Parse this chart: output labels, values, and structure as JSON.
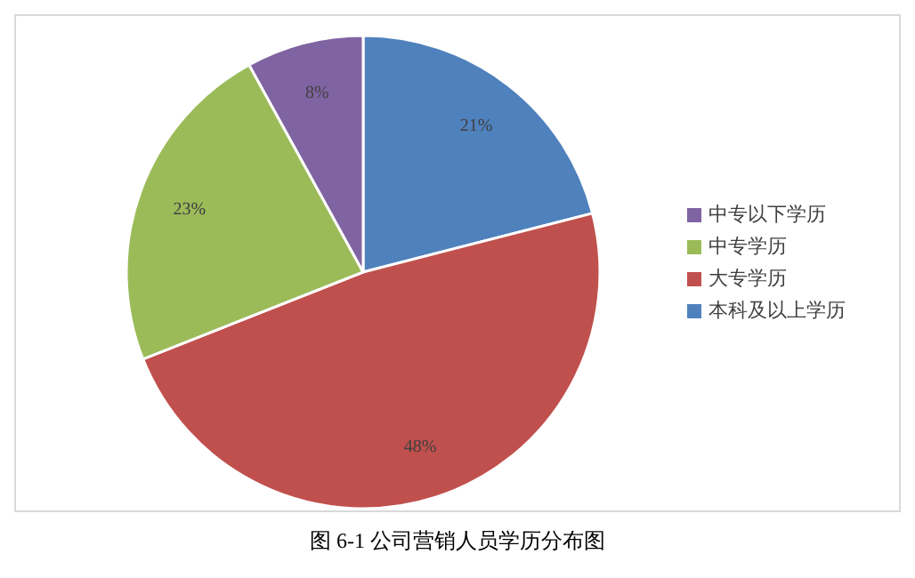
{
  "chart_data": {
    "type": "pie",
    "categories": [
      "本科及以上学历",
      "大专学历",
      "中专学历",
      "中专以下学历"
    ],
    "values": [
      21,
      48,
      23,
      8
    ],
    "colors": [
      "#4f81bd",
      "#c0504d",
      "#9bbb59",
      "#8064a2"
    ],
    "value_labels": [
      "21%",
      "48%",
      "23%",
      "8%"
    ],
    "legend": "right",
    "annotations": [
      "图 6-1 公司营销人员学历分布图"
    ]
  }
}
